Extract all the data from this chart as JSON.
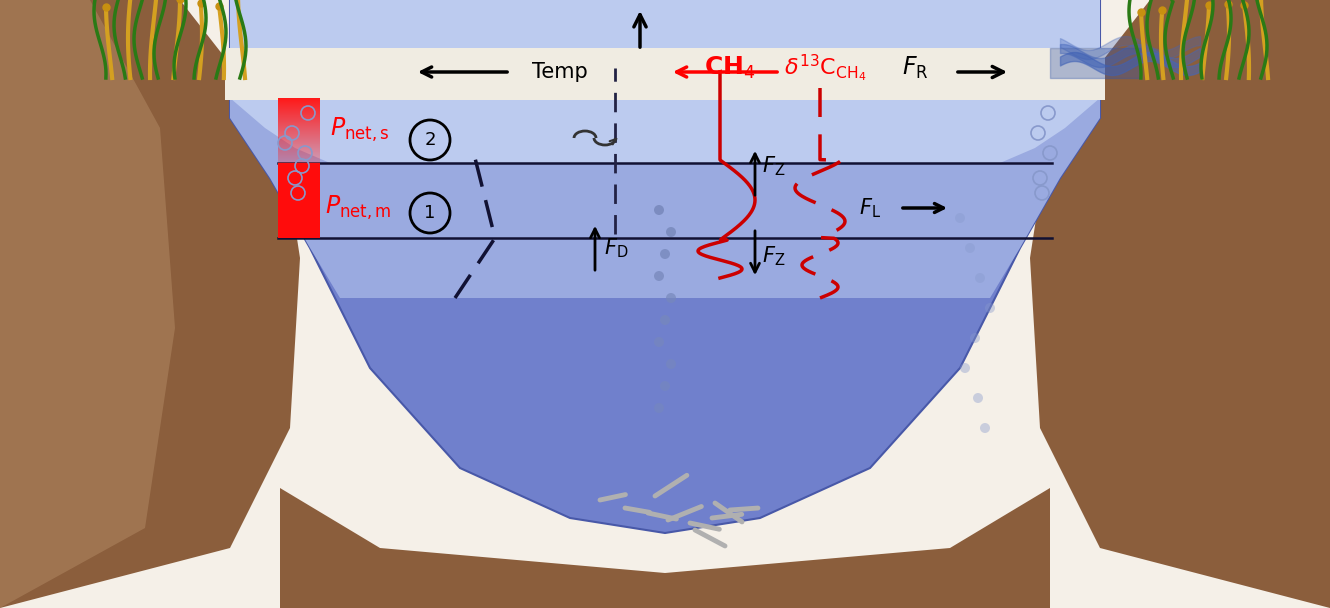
{
  "fig_width": 13.3,
  "fig_height": 6.08,
  "bg_color": "#f5f0e8",
  "water_light": "#b8c4e8",
  "water_dark": "#6b75cc",
  "water_epilimnion": "#c8d4f0",
  "soil_color": "#8B5E3C",
  "soil_light": "#b8906a",
  "surface_bar_color_top": "#ff2222",
  "surface_bar_color_bottom": "#ffaaaa",
  "red_line_color": "#cc0000",
  "dashed_red_color": "#cc0000",
  "dashed_black_color": "#1a1a5e",
  "arrow_color": "#222222",
  "title": ""
}
